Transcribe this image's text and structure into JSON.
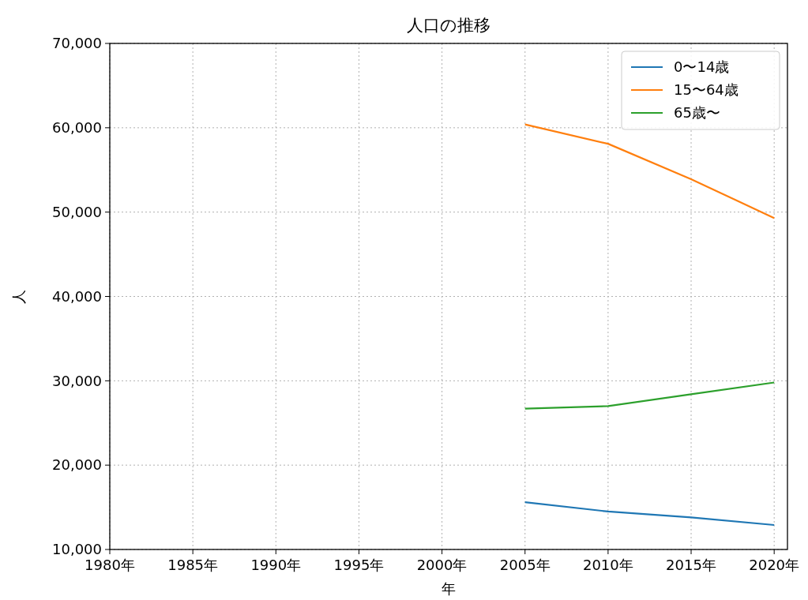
{
  "chart_data": {
    "type": "line",
    "title": "人口の推移",
    "xlabel": "年",
    "ylabel": "人",
    "x": [
      2005,
      2010,
      2015,
      2020
    ],
    "series": [
      {
        "name": "0〜14歳",
        "color": "#1f77b4",
        "values": [
          15600,
          14500,
          13800,
          12900
        ]
      },
      {
        "name": "15〜64歳",
        "color": "#ff7f0e",
        "values": [
          60400,
          58100,
          53900,
          49300
        ]
      },
      {
        "name": "65歳〜",
        "color": "#2ca02c",
        "values": [
          26700,
          27000,
          28400,
          29800
        ]
      }
    ],
    "xlim": [
      1980,
      2020.8
    ],
    "xticks": [
      {
        "value": 1980,
        "label": "1980年"
      },
      {
        "value": 1985,
        "label": "1985年"
      },
      {
        "value": 1990,
        "label": "1990年"
      },
      {
        "value": 1995,
        "label": "1995年"
      },
      {
        "value": 2000,
        "label": "2000年"
      },
      {
        "value": 2005,
        "label": "2005年"
      },
      {
        "value": 2010,
        "label": "2010年"
      },
      {
        "value": 2015,
        "label": "2015年"
      },
      {
        "value": 2020,
        "label": "2020年"
      }
    ],
    "ylim": [
      10000,
      70000
    ],
    "yticks": [
      {
        "value": 10000,
        "label": "10,000"
      },
      {
        "value": 20000,
        "label": "20,000"
      },
      {
        "value": 30000,
        "label": "30,000"
      },
      {
        "value": 40000,
        "label": "40,000"
      },
      {
        "value": 50000,
        "label": "50,000"
      },
      {
        "value": 60000,
        "label": "60,000"
      },
      {
        "value": 70000,
        "label": "70,000"
      }
    ],
    "grid": true,
    "legend": "top right",
    "marker": "none",
    "line_style": "solid"
  }
}
